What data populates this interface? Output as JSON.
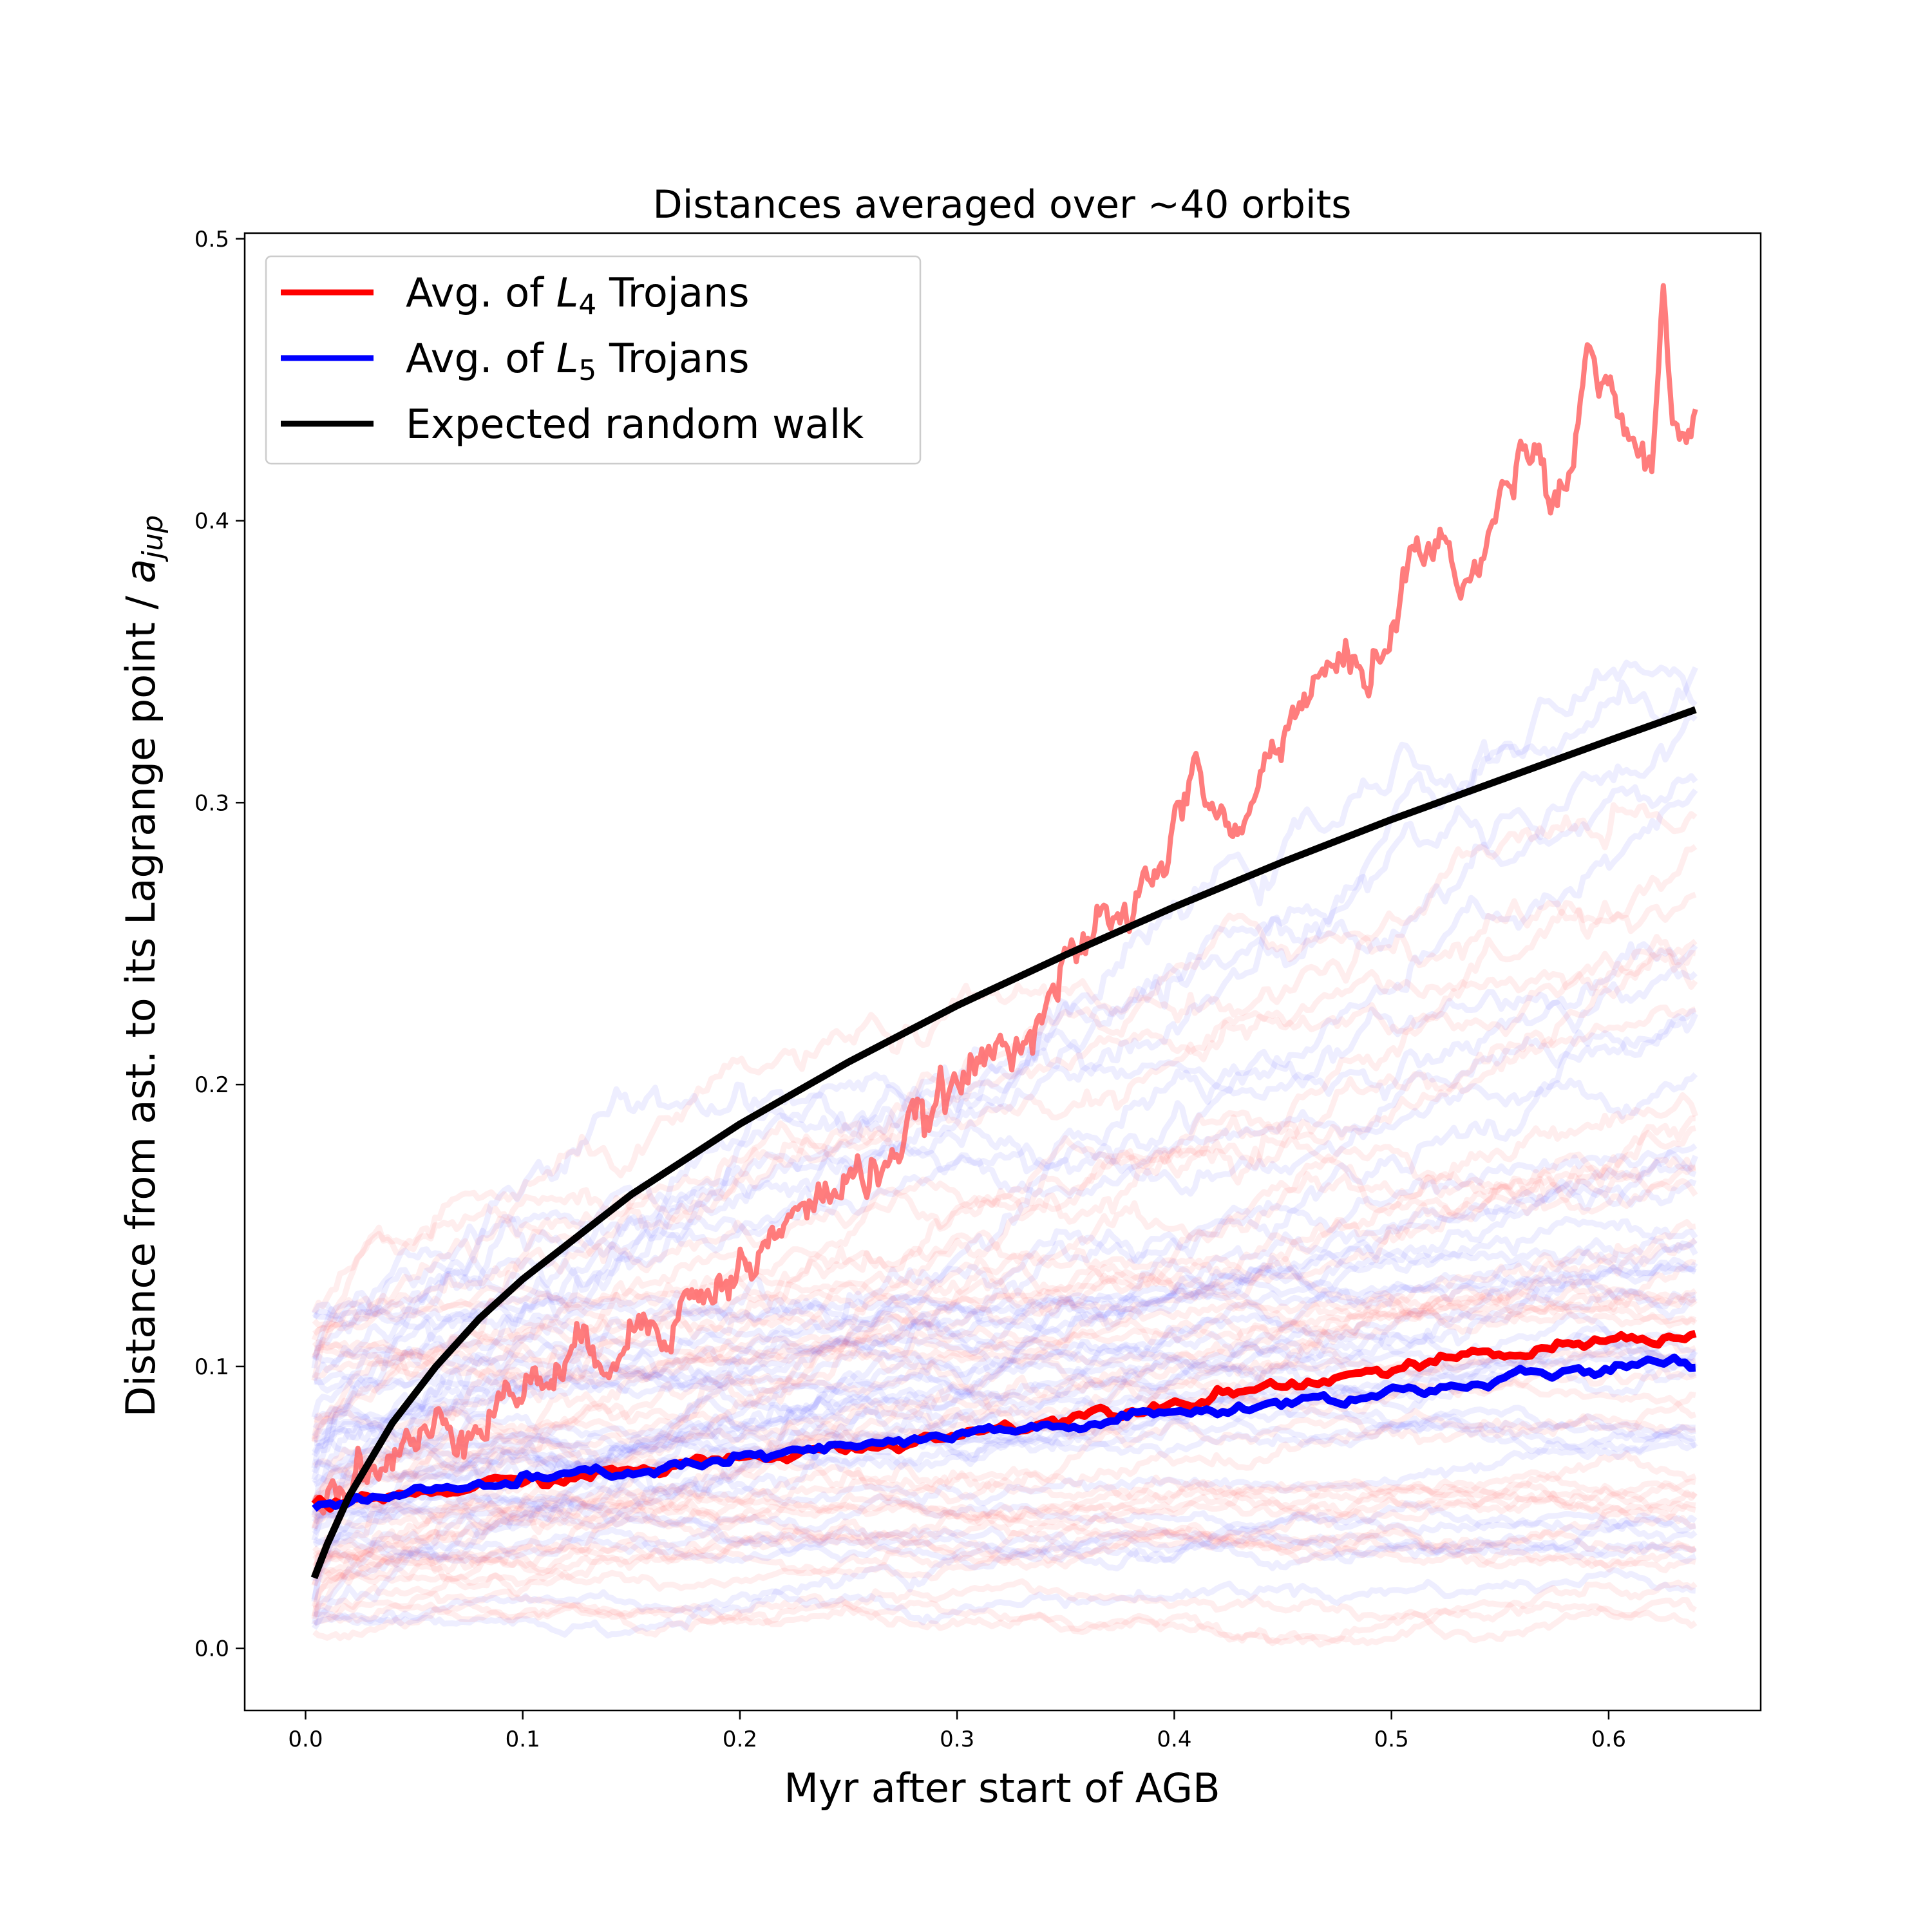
{
  "chart_data": {
    "type": "line",
    "title": "Distances averaged over  ~40 orbits",
    "xlabel": "Myr after start of AGB",
    "ylabel": "Distance from ast. to its Lagrange point / a_jup",
    "ylabel_parts": {
      "main": "Distance from ast. to its Lagrange point / ",
      "var": "a",
      "sub": "jup"
    },
    "xlim": [
      -0.028,
      0.67
    ],
    "ylim": [
      -0.022,
      0.502
    ],
    "xticks": [
      0.0,
      0.1,
      0.2,
      0.3,
      0.4,
      0.5,
      0.6
    ],
    "xtick_labels": [
      "0.0",
      "0.1",
      "0.2",
      "0.3",
      "0.4",
      "0.5",
      "0.6"
    ],
    "yticks": [
      0.0,
      0.1,
      0.2,
      0.3,
      0.4,
      0.5
    ],
    "ytick_labels": [
      "0.0",
      "0.1",
      "0.2",
      "0.3",
      "0.4",
      "0.5"
    ],
    "grid": false,
    "legend": {
      "placement": "top-left",
      "entries": [
        {
          "prefix": "Avg. of ",
          "var": "L",
          "sub": "4",
          "suffix": " Trojans",
          "color": "#ff0000"
        },
        {
          "prefix": "Avg. of ",
          "var": "L",
          "sub": "5",
          "suffix": " Trojans",
          "color": "#0000ff"
        },
        {
          "prefix": "Expected random walk",
          "var": "",
          "sub": "",
          "suffix": "",
          "color": "#000000"
        }
      ]
    },
    "series": [
      {
        "name": "Avg. of L4 Trojans",
        "color": "#ff0000",
        "x": [
          0.004,
          0.05,
          0.1,
          0.15,
          0.2,
          0.25,
          0.3,
          0.35,
          0.4,
          0.45,
          0.5,
          0.55,
          0.6,
          0.62,
          0.64
        ],
        "y": [
          0.05,
          0.055,
          0.059,
          0.063,
          0.067,
          0.071,
          0.076,
          0.082,
          0.088,
          0.094,
          0.099,
          0.104,
          0.109,
          0.111,
          0.111
        ]
      },
      {
        "name": "Avg. of L5 Trojans",
        "color": "#0000ff",
        "x": [
          0.004,
          0.05,
          0.1,
          0.15,
          0.2,
          0.25,
          0.3,
          0.35,
          0.4,
          0.45,
          0.5,
          0.55,
          0.6,
          0.62,
          0.64
        ],
        "y": [
          0.051,
          0.055,
          0.059,
          0.063,
          0.067,
          0.071,
          0.075,
          0.079,
          0.083,
          0.087,
          0.091,
          0.095,
          0.099,
          0.1,
          0.101
        ]
      },
      {
        "name": "Expected random walk",
        "color": "#000000",
        "x": [
          0.004,
          0.01,
          0.02,
          0.04,
          0.06,
          0.08,
          0.1,
          0.15,
          0.2,
          0.25,
          0.3,
          0.35,
          0.4,
          0.45,
          0.5,
          0.55,
          0.6,
          0.64
        ],
        "y": [
          0.025,
          0.037,
          0.054,
          0.08,
          0.1,
          0.117,
          0.131,
          0.161,
          0.186,
          0.208,
          0.228,
          0.246,
          0.263,
          0.279,
          0.294,
          0.308,
          0.322,
          0.333
        ]
      },
      {
        "name": "",
        "color": "#ff6666",
        "x": [
          0.004,
          0.02,
          0.04,
          0.06,
          0.08,
          0.1,
          0.12,
          0.14,
          0.16,
          0.18,
          0.2,
          0.22,
          0.24,
          0.26,
          0.28,
          0.3,
          0.32,
          0.34,
          0.36,
          0.38,
          0.4,
          0.41,
          0.43,
          0.45,
          0.47,
          0.49,
          0.5,
          0.51,
          0.52,
          0.54,
          0.56,
          0.58,
          0.59,
          0.6,
          0.61,
          0.62,
          0.625,
          0.63,
          0.64
        ],
        "y": [
          0.05,
          0.062,
          0.068,
          0.076,
          0.085,
          0.092,
          0.101,
          0.108,
          0.117,
          0.124,
          0.134,
          0.148,
          0.162,
          0.17,
          0.182,
          0.2,
          0.212,
          0.23,
          0.25,
          0.26,
          0.29,
          0.31,
          0.285,
          0.33,
          0.345,
          0.35,
          0.36,
          0.39,
          0.39,
          0.38,
          0.43,
          0.41,
          0.46,
          0.45,
          0.43,
          0.41,
          0.47,
          0.43,
          0.435
        ]
      }
    ],
    "background_ensemble": {
      "count": 80,
      "colors": [
        "#ff4444",
        "#4444ff"
      ],
      "y_start_range": [
        0.005,
        0.12
      ],
      "y_end_range": [
        0.01,
        0.38
      ]
    }
  }
}
